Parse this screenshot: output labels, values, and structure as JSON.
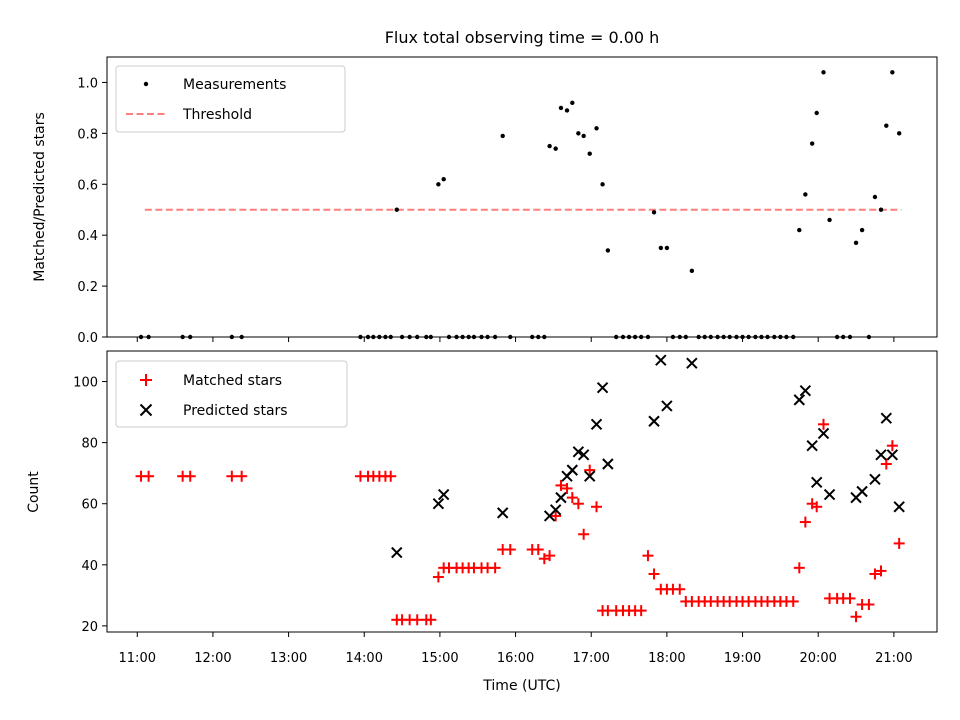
{
  "figure_title": "Flux total observing time = 0.00 h",
  "chart_data": [
    {
      "type": "scatter",
      "panel": "top",
      "xlabel": "",
      "ylabel": "Matched/Predicted stars",
      "xlim": [
        10.6,
        21.57
      ],
      "ylim": [
        0,
        1.1
      ],
      "yticks": [
        0.0,
        0.2,
        0.4,
        0.6,
        0.8,
        1.0
      ],
      "ytick_labels": [
        "0.0",
        "0.2",
        "0.4",
        "0.6",
        "0.8",
        "1.0"
      ],
      "legend_position": "top-left",
      "series": [
        {
          "name": "Measurements",
          "color": "#000000",
          "marker": "dot",
          "x": [
            11.05,
            11.15,
            11.6,
            11.7,
            12.25,
            12.38,
            13.95,
            14.05,
            14.12,
            14.2,
            14.28,
            14.35,
            14.43,
            14.5,
            14.6,
            14.7,
            14.82,
            14.88,
            14.98,
            15.05,
            15.12,
            15.22,
            15.3,
            15.38,
            15.45,
            15.55,
            15.63,
            15.73,
            15.83,
            15.93,
            16.22,
            16.3,
            16.38,
            16.45,
            16.53,
            16.6,
            16.68,
            16.75,
            16.83,
            16.9,
            16.98,
            17.07,
            17.15,
            17.22,
            17.33,
            17.42,
            17.5,
            17.58,
            17.66,
            17.75,
            17.83,
            17.92,
            18.0,
            18.08,
            18.17,
            18.25,
            18.33,
            18.42,
            18.5,
            18.58,
            18.67,
            18.75,
            18.83,
            18.92,
            19.0,
            19.08,
            19.17,
            19.25,
            19.33,
            19.42,
            19.5,
            19.58,
            19.67,
            19.75,
            19.83,
            19.92,
            19.98,
            20.07,
            20.15,
            20.25,
            20.33,
            20.42,
            20.5,
            20.58,
            20.67,
            20.75,
            20.83,
            20.9,
            20.98,
            21.07
          ],
          "y": [
            0,
            0,
            0,
            0,
            0,
            0,
            0,
            0,
            0,
            0,
            0,
            0,
            0.5,
            0,
            0,
            0,
            0,
            0,
            0.6,
            0.62,
            0,
            0,
            0,
            0,
            0,
            0,
            0,
            0,
            0.79,
            0,
            0,
            0,
            0,
            0.75,
            0.74,
            0.9,
            0.89,
            0.92,
            0.8,
            0.79,
            0.72,
            0.82,
            0.6,
            0.34,
            0,
            0,
            0,
            0,
            0,
            0,
            0.49,
            0.35,
            0.35,
            0,
            0,
            0,
            0.26,
            0,
            0,
            0,
            0,
            0,
            0,
            0,
            0,
            0,
            0,
            0,
            0,
            0,
            0,
            0,
            0,
            0.42,
            0.56,
            0.76,
            0.88,
            1.04,
            0.46,
            0,
            0,
            0,
            0.37,
            0.42,
            0,
            0.55,
            0.5,
            0.83,
            1.04,
            0.8
          ]
        },
        {
          "name": "Threshold",
          "color": "#ff7f7f",
          "style": "dashed",
          "x": [
            11.1,
            21.1
          ],
          "y": [
            0.5,
            0.5
          ]
        }
      ]
    },
    {
      "type": "scatter",
      "panel": "bottom",
      "xlabel": "Time (UTC)",
      "ylabel": "Count",
      "xlim": [
        10.6,
        21.57
      ],
      "ylim": [
        18,
        110
      ],
      "xticks": [
        11,
        12,
        13,
        14,
        15,
        16,
        17,
        18,
        19,
        20,
        21
      ],
      "xtick_labels": [
        "11:00",
        "12:00",
        "13:00",
        "14:00",
        "15:00",
        "16:00",
        "17:00",
        "18:00",
        "19:00",
        "20:00",
        "21:00"
      ],
      "yticks": [
        20,
        40,
        60,
        80,
        100
      ],
      "ytick_labels": [
        "20",
        "40",
        "60",
        "80",
        "100"
      ],
      "legend_position": "top-left",
      "series": [
        {
          "name": "Matched stars",
          "color": "#ff0000",
          "marker": "plus",
          "x": [
            11.05,
            11.15,
            11.6,
            11.7,
            12.25,
            12.38,
            13.95,
            14.05,
            14.12,
            14.2,
            14.28,
            14.35,
            14.43,
            14.5,
            14.6,
            14.7,
            14.82,
            14.88,
            14.98,
            15.05,
            15.12,
            15.22,
            15.3,
            15.38,
            15.45,
            15.55,
            15.63,
            15.73,
            15.83,
            15.93,
            16.22,
            16.3,
            16.38,
            16.45,
            16.53,
            16.6,
            16.68,
            16.75,
            16.83,
            16.9,
            16.98,
            17.07,
            17.15,
            17.22,
            17.33,
            17.42,
            17.5,
            17.58,
            17.66,
            17.75,
            17.83,
            17.92,
            18.0,
            18.08,
            18.17,
            18.25,
            18.33,
            18.42,
            18.5,
            18.58,
            18.67,
            18.75,
            18.83,
            18.92,
            19.0,
            19.08,
            19.17,
            19.25,
            19.33,
            19.42,
            19.5,
            19.58,
            19.67,
            19.75,
            19.83,
            19.92,
            19.98,
            20.07,
            20.15,
            20.25,
            20.33,
            20.42,
            20.5,
            20.58,
            20.67,
            20.75,
            20.83,
            20.9,
            20.98,
            21.07
          ],
          "y": [
            69,
            69,
            69,
            69,
            69,
            69,
            69,
            69,
            69,
            69,
            69,
            69,
            22,
            22,
            22,
            22,
            22,
            22,
            36,
            39,
            39,
            39,
            39,
            39,
            39,
            39,
            39,
            39,
            45,
            45,
            45,
            45,
            42,
            43,
            56,
            66,
            65,
            62,
            60,
            50,
            71,
            59,
            25,
            25,
            25,
            25,
            25,
            25,
            25,
            43,
            37,
            32,
            32,
            32,
            32,
            28,
            28,
            28,
            28,
            28,
            28,
            28,
            28,
            28,
            28,
            28,
            28,
            28,
            28,
            28,
            28,
            28,
            28,
            39,
            54,
            60,
            59,
            86,
            29,
            29,
            29,
            29,
            23,
            27,
            27,
            37,
            38,
            73,
            79,
            47
          ]
        },
        {
          "name": "Predicted stars",
          "color": "#000000",
          "marker": "x",
          "x": [
            14.43,
            14.98,
            15.05,
            15.83,
            16.45,
            16.53,
            16.6,
            16.68,
            16.75,
            16.83,
            16.9,
            16.98,
            17.07,
            17.15,
            17.22,
            17.83,
            17.92,
            18.0,
            18.33,
            19.75,
            19.83,
            19.92,
            19.98,
            20.07,
            20.15,
            20.5,
            20.58,
            20.75,
            20.83,
            20.9,
            20.98,
            21.07
          ],
          "y": [
            44,
            60,
            63,
            57,
            56,
            58,
            62,
            69,
            71,
            77,
            76,
            69,
            86,
            98,
            73,
            87,
            107,
            92,
            106,
            94,
            97,
            79,
            67,
            83,
            63,
            62,
            64,
            68,
            76,
            88,
            76,
            59
          ]
        }
      ]
    }
  ]
}
